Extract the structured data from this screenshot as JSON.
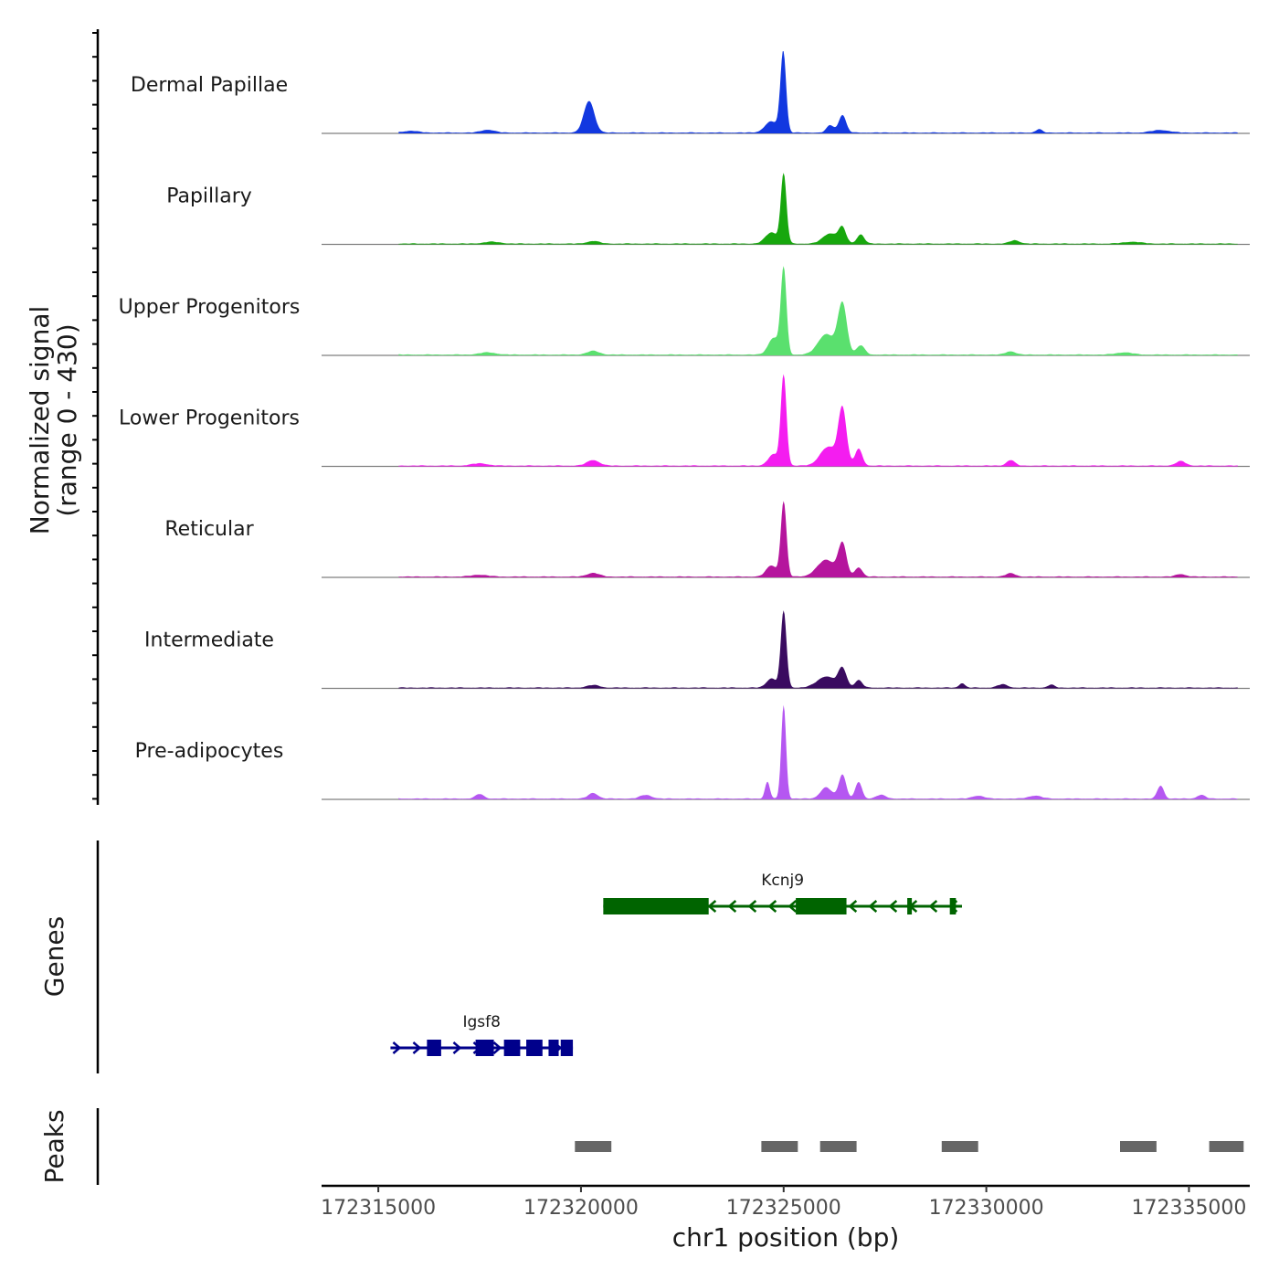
{
  "chart_data": {
    "type": "area",
    "xlabel": "chr1 position (bp)",
    "ylabel_line1": "Normalized signal",
    "ylabel_line2": "(range 0 - 430)",
    "y_range": [
      0,
      430
    ],
    "x_range": [
      172313600,
      172336500
    ],
    "x_ticks": [
      {
        "value": 172315000,
        "label": "172315000"
      },
      {
        "value": 172320000,
        "label": "172320000"
      },
      {
        "value": 172325000,
        "label": "172325000"
      },
      {
        "value": 172330000,
        "label": "172330000"
      },
      {
        "value": 172335000,
        "label": "172335000"
      }
    ],
    "tracks": [
      {
        "name": "Dermal Papillae",
        "color": "#1238e0",
        "peaks": [
          [
            172324990,
            430,
            70
          ],
          [
            172324700,
            60,
            160
          ],
          [
            172320200,
            170,
            130
          ],
          [
            172326450,
            95,
            90
          ],
          [
            172326150,
            40,
            90
          ],
          [
            172331300,
            18,
            80
          ],
          [
            172317700,
            16,
            160
          ],
          [
            172334300,
            14,
            220
          ],
          [
            172315800,
            10,
            180
          ]
        ]
      },
      {
        "name": "Papillary",
        "color": "#17a70d",
        "peaks": [
          [
            172325000,
            370,
            70
          ],
          [
            172324700,
            60,
            150
          ],
          [
            172326150,
            55,
            180
          ],
          [
            172326450,
            80,
            90
          ],
          [
            172326900,
            50,
            90
          ],
          [
            172330700,
            18,
            120
          ],
          [
            172320300,
            14,
            150
          ],
          [
            172317800,
            10,
            200
          ],
          [
            172333600,
            10,
            220
          ]
        ]
      },
      {
        "name": "Upper Progenitors",
        "color": "#5ae06e",
        "peaks": [
          [
            172325000,
            460,
            70
          ],
          [
            172324750,
            90,
            130
          ],
          [
            172326050,
            110,
            200
          ],
          [
            172326450,
            270,
            110
          ],
          [
            172326900,
            50,
            100
          ],
          [
            172330600,
            18,
            120
          ],
          [
            172320300,
            20,
            150
          ],
          [
            172317700,
            12,
            200
          ],
          [
            172333400,
            12,
            200
          ]
        ]
      },
      {
        "name": "Lower Progenitors",
        "color": "#f41df0",
        "peaks": [
          [
            172325000,
            480,
            70
          ],
          [
            172324750,
            60,
            130
          ],
          [
            172326100,
            100,
            200
          ],
          [
            172326450,
            300,
            100
          ],
          [
            172326850,
            90,
            90
          ],
          [
            172330600,
            30,
            100
          ],
          [
            172320300,
            30,
            150
          ],
          [
            172334800,
            24,
            120
          ],
          [
            172317500,
            12,
            200
          ]
        ]
      },
      {
        "name": "Reticular",
        "color": "#b5159d",
        "peaks": [
          [
            172325000,
            400,
            70
          ],
          [
            172324700,
            60,
            130
          ],
          [
            172326050,
            90,
            220
          ],
          [
            172326450,
            170,
            100
          ],
          [
            172326850,
            50,
            90
          ],
          [
            172330600,
            18,
            120
          ],
          [
            172320300,
            20,
            150
          ],
          [
            172334800,
            14,
            120
          ],
          [
            172317500,
            10,
            200
          ]
        ]
      },
      {
        "name": "Intermediate",
        "color": "#3a0b60",
        "peaks": [
          [
            172325000,
            410,
            70
          ],
          [
            172324700,
            50,
            120
          ],
          [
            172326050,
            60,
            220
          ],
          [
            172326450,
            100,
            100
          ],
          [
            172326850,
            40,
            90
          ],
          [
            172329400,
            24,
            70
          ],
          [
            172330400,
            18,
            120
          ],
          [
            172331600,
            16,
            80
          ],
          [
            172320300,
            14,
            150
          ]
        ]
      },
      {
        "name": "Pre-adipocytes",
        "color": "#b557f1",
        "peaks": [
          [
            172325000,
            500,
            60
          ],
          [
            172324600,
            90,
            60
          ],
          [
            172326050,
            60,
            140
          ],
          [
            172326450,
            130,
            90
          ],
          [
            172326850,
            90,
            80
          ],
          [
            172334300,
            70,
            80
          ],
          [
            172315300,
            30,
            80
          ],
          [
            172317500,
            25,
            100
          ],
          [
            172320300,
            30,
            120
          ],
          [
            172321600,
            20,
            140
          ],
          [
            172327400,
            20,
            120
          ],
          [
            172329800,
            16,
            140
          ],
          [
            172331200,
            16,
            160
          ],
          [
            172335300,
            20,
            100
          ]
        ]
      }
    ],
    "genes": [
      {
        "name": "Kcnj9",
        "color": "#006400",
        "strand": "-",
        "start": 172320550,
        "end": 172329400,
        "exons": [
          [
            172320550,
            172323150
          ],
          [
            172325300,
            172326550
          ],
          [
            172328050,
            172328150
          ],
          [
            172329100,
            172329250
          ]
        ]
      },
      {
        "name": "Igsf8",
        "color": "#00008b",
        "strand": "+",
        "start": 172315300,
        "end": 172319800,
        "exons": [
          [
            172316200,
            172316550
          ],
          [
            172317400,
            172317850
          ],
          [
            172318100,
            172318500
          ],
          [
            172318650,
            172319050
          ],
          [
            172319200,
            172319450
          ],
          [
            172319500,
            172319800
          ]
        ]
      }
    ],
    "genes_label": "Genes",
    "peaks_label": "Peaks",
    "peak_regions": [
      [
        172319850,
        172320750
      ],
      [
        172324450,
        172325350
      ],
      [
        172325900,
        172326800
      ],
      [
        172328900,
        172329800
      ],
      [
        172333300,
        172334200
      ],
      [
        172335500,
        172336350
      ]
    ]
  }
}
